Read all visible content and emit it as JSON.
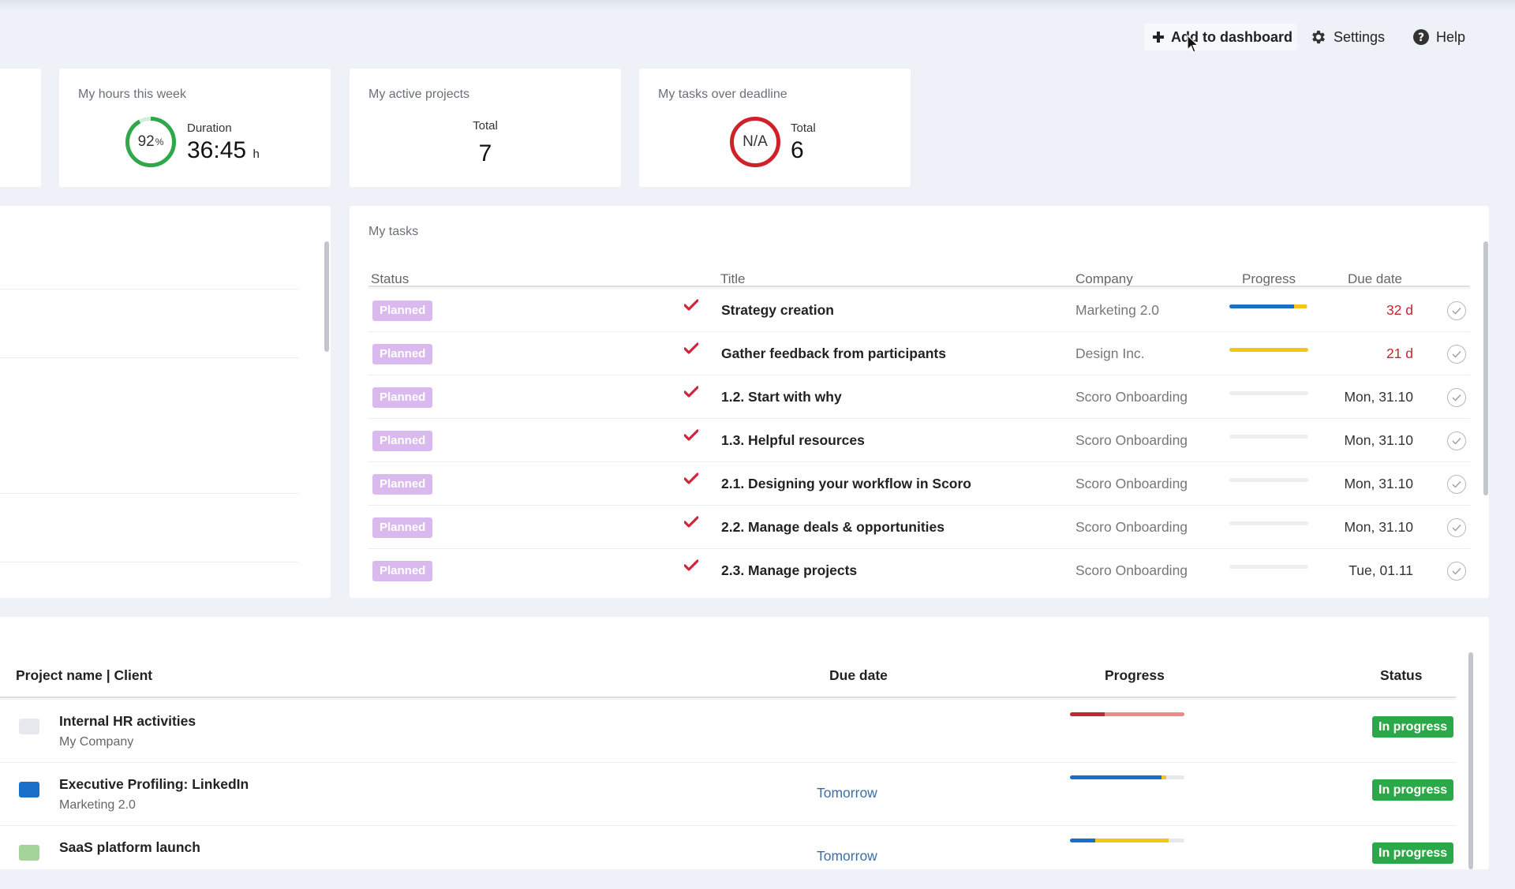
{
  "header": {
    "add_to_dashboard": "Add to dashboard",
    "settings": "Settings",
    "help": "Help"
  },
  "kpis": {
    "hours": {
      "title": "My hours this week",
      "percent": "92",
      "percent_unit": "%",
      "percent_value": 0.92,
      "label": "Duration",
      "value": "36:45",
      "unit": "h",
      "ring_color": "#2ea84a"
    },
    "projects": {
      "title": "My active projects",
      "label": "Total",
      "value": "7"
    },
    "overdue": {
      "title": "My tasks over deadline",
      "ring_text": "N/A",
      "label": "Total",
      "value": "6",
      "ring_color": "#d0202a"
    }
  },
  "tasks": {
    "title": "My tasks",
    "columns": {
      "status": "Status",
      "title": "Title",
      "company": "Company",
      "progress": "Progress",
      "due": "Due date"
    },
    "rows": [
      {
        "status": "Planned",
        "title": "Strategy creation",
        "company": "Marketing 2.0",
        "due": "32 d",
        "late": true,
        "progress": [
          {
            "color": "#1a6fc9",
            "value": 0.82
          },
          {
            "color": "#f5c518",
            "value": 0.16
          }
        ]
      },
      {
        "status": "Planned",
        "title": "Gather feedback from participants",
        "company": "Design Inc.",
        "due": "21 d",
        "late": true,
        "progress": [
          {
            "color": "#f5c518",
            "value": 1.0
          }
        ]
      },
      {
        "status": "Planned",
        "title": "1.2. Start with why",
        "company": "Scoro Onboarding",
        "due": "Mon, 31.10",
        "late": false,
        "progress": []
      },
      {
        "status": "Planned",
        "title": "1.3. Helpful resources",
        "company": "Scoro Onboarding",
        "due": "Mon, 31.10",
        "late": false,
        "progress": []
      },
      {
        "status": "Planned",
        "title": "2.1. Designing your workflow in Scoro",
        "company": "Scoro Onboarding",
        "due": "Mon, 31.10",
        "late": false,
        "progress": []
      },
      {
        "status": "Planned",
        "title": "2.2. Manage deals & opportunities",
        "company": "Scoro Onboarding",
        "due": "Mon, 31.10",
        "late": false,
        "progress": []
      },
      {
        "status": "Planned",
        "title": "2.3. Manage projects",
        "company": "Scoro Onboarding",
        "due": "Tue, 01.11",
        "late": false,
        "progress": []
      }
    ]
  },
  "projects": {
    "columns": {
      "name": "Project name | Client",
      "due": "Due date",
      "progress": "Progress",
      "status": "Status"
    },
    "rows": [
      {
        "name": "Internal HR activities",
        "client": "My Company",
        "due": "",
        "icon_color": "#e6e8ee",
        "status": "In progress",
        "progress": [
          {
            "color": "#c0282d",
            "value": 0.3
          },
          {
            "color": "#ef8a8a",
            "value": 0.7
          }
        ]
      },
      {
        "name": "Executive Profiling: LinkedIn",
        "client": "Marketing 2.0",
        "due": "Tomorrow",
        "icon_color": "#1a6fc9",
        "status": "In progress",
        "progress": [
          {
            "color": "#1a6fc9",
            "value": 0.8
          },
          {
            "color": "#f5c518",
            "value": 0.04
          }
        ]
      },
      {
        "name": "SaaS platform launch",
        "client": "",
        "due": "Tomorrow",
        "icon_color": "#a5d49a",
        "status": "In progress",
        "progress": [
          {
            "color": "#1a6fc9",
            "value": 0.22
          },
          {
            "color": "#f5c518",
            "value": 0.64
          }
        ]
      }
    ]
  }
}
